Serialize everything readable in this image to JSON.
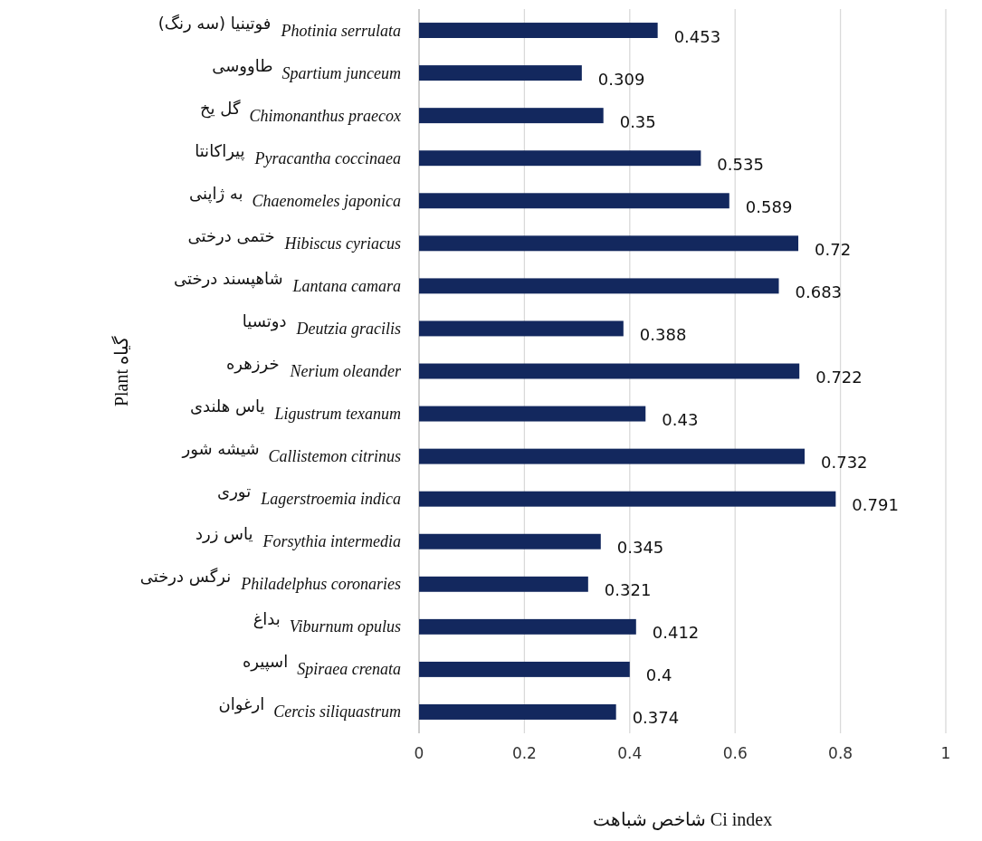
{
  "chart_data": {
    "type": "bar",
    "orientation": "horizontal",
    "xlabel": "شاخص شباهت Ci index",
    "ylabel": "Plant گیاه",
    "categories": [
      "*Photinia serrulata* فوتینیا (سه رنگ)",
      "*Spartium  junceum* طاووسی",
      "*Chimonanthus praecox* گل یخ",
      "*Pyracantha coccinaea* پیراکانتا",
      "*Chaenomeles japonica* به ژاپنی",
      "*Hibiscus cyriacus* ختمی درختی",
      "*Lantana camara* شاهپسند درختی",
      "*Deutzia gracilis* دوتسیا",
      "*Nerium oleander* خرزهره",
      "*Ligustrum texanum* یاس هلندی",
      "*Callistemon citrinus* شیشه شور",
      "*Lagerstroemia  indica* توری",
      "*Forsythia intermedia* یاس زرد",
      "*Philadelphus coronaries* نرگس درختی",
      "*Viburnum opulus* بداغ",
      "*Spiraea crenata* اسپیره",
      "*Cercis siliquastrum* ارغوان"
    ],
    "values": [
      0.453,
      0.309,
      0.35,
      0.535,
      0.589,
      0.72,
      0.683,
      0.388,
      0.722,
      0.43,
      0.732,
      0.791,
      0.345,
      0.321,
      0.412,
      0.4,
      0.374
    ],
    "color": "#13285e",
    "data_labels": true,
    "xlim": [
      0,
      1
    ],
    "xticks": [
      0,
      0.2,
      0.4,
      0.6,
      0.8,
      1
    ],
    "grid": "x"
  }
}
